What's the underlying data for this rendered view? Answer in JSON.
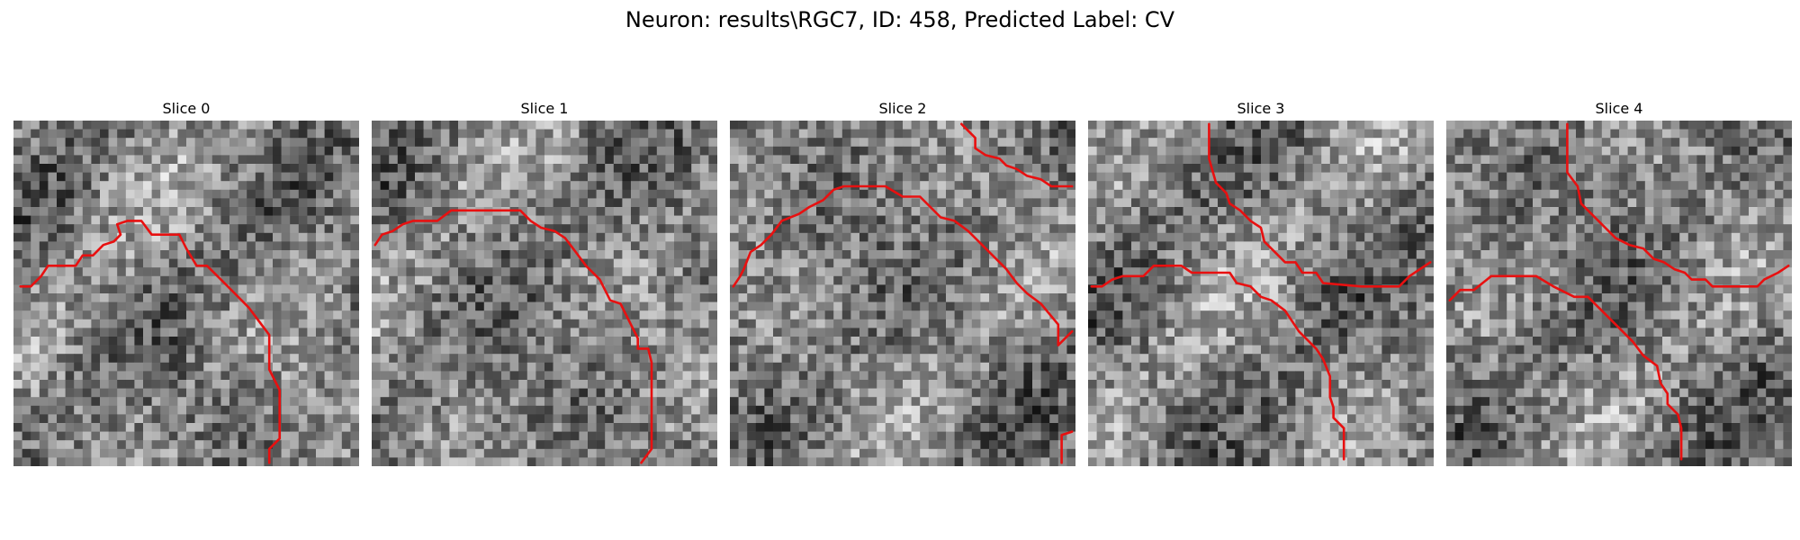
{
  "figure": {
    "title": "Neuron: results\\RGC7, ID: 458, Predicted Label: CV"
  },
  "style": {
    "trace_color": "#e81010",
    "colormap": "gray"
  },
  "slices": [
    {
      "title": "Slice 0",
      "seed": 11,
      "grid": 40,
      "traces": [
        [
          [
            0.02,
            0.48
          ],
          [
            0.05,
            0.48
          ],
          [
            0.08,
            0.45
          ],
          [
            0.1,
            0.42
          ],
          [
            0.13,
            0.42
          ],
          [
            0.18,
            0.42
          ],
          [
            0.2,
            0.39
          ],
          [
            0.23,
            0.39
          ],
          [
            0.26,
            0.36
          ],
          [
            0.29,
            0.35
          ],
          [
            0.31,
            0.33
          ],
          [
            0.3,
            0.3
          ],
          [
            0.33,
            0.29
          ],
          [
            0.37,
            0.29
          ],
          [
            0.4,
            0.33
          ],
          [
            0.48,
            0.33
          ],
          [
            0.5,
            0.37
          ],
          [
            0.53,
            0.42
          ],
          [
            0.56,
            0.42
          ],
          [
            0.6,
            0.46
          ],
          [
            0.64,
            0.5
          ],
          [
            0.68,
            0.54
          ],
          [
            0.71,
            0.58
          ],
          [
            0.74,
            0.62
          ],
          [
            0.74,
            0.72
          ],
          [
            0.77,
            0.78
          ],
          [
            0.77,
            0.92
          ],
          [
            0.74,
            0.95
          ],
          [
            0.74,
            0.99
          ]
        ]
      ]
    },
    {
      "title": "Slice 1",
      "seed": 23,
      "grid": 40,
      "traces": [
        [
          [
            0.01,
            0.36
          ],
          [
            0.03,
            0.33
          ],
          [
            0.06,
            0.32
          ],
          [
            0.09,
            0.3
          ],
          [
            0.12,
            0.29
          ],
          [
            0.19,
            0.29
          ],
          [
            0.23,
            0.26
          ],
          [
            0.43,
            0.26
          ],
          [
            0.46,
            0.29
          ],
          [
            0.49,
            0.31
          ],
          [
            0.53,
            0.32
          ],
          [
            0.56,
            0.34
          ],
          [
            0.59,
            0.38
          ],
          [
            0.62,
            0.42
          ],
          [
            0.66,
            0.46
          ],
          [
            0.69,
            0.52
          ],
          [
            0.72,
            0.53
          ],
          [
            0.75,
            0.59
          ],
          [
            0.77,
            0.63
          ],
          [
            0.77,
            0.66
          ],
          [
            0.8,
            0.66
          ],
          [
            0.81,
            0.7
          ],
          [
            0.81,
            0.95
          ],
          [
            0.78,
            0.99
          ]
        ]
      ]
    },
    {
      "title": "Slice 2",
      "seed": 37,
      "grid": 40,
      "traces": [
        [
          [
            0.01,
            0.48
          ],
          [
            0.03,
            0.45
          ],
          [
            0.04,
            0.43
          ],
          [
            0.06,
            0.38
          ],
          [
            0.09,
            0.36
          ],
          [
            0.12,
            0.33
          ],
          [
            0.15,
            0.29
          ],
          [
            0.2,
            0.27
          ],
          [
            0.23,
            0.25
          ],
          [
            0.27,
            0.23
          ],
          [
            0.3,
            0.2
          ],
          [
            0.33,
            0.19
          ],
          [
            0.36,
            0.19
          ],
          [
            0.45,
            0.19
          ],
          [
            0.5,
            0.22
          ],
          [
            0.55,
            0.22
          ],
          [
            0.58,
            0.25
          ],
          [
            0.61,
            0.28
          ],
          [
            0.65,
            0.29
          ],
          [
            0.69,
            0.32
          ],
          [
            0.73,
            0.36
          ],
          [
            0.77,
            0.4
          ],
          [
            0.8,
            0.43
          ],
          [
            0.83,
            0.47
          ],
          [
            0.86,
            0.5
          ],
          [
            0.9,
            0.53
          ],
          [
            0.95,
            0.59
          ],
          [
            0.95,
            0.65
          ],
          [
            0.99,
            0.61
          ]
        ],
        [
          [
            0.67,
            0.01
          ],
          [
            0.71,
            0.05
          ],
          [
            0.71,
            0.08
          ],
          [
            0.74,
            0.1
          ],
          [
            0.78,
            0.11
          ],
          [
            0.8,
            0.13
          ],
          [
            0.83,
            0.14
          ],
          [
            0.86,
            0.16
          ],
          [
            0.9,
            0.17
          ],
          [
            0.93,
            0.19
          ],
          [
            0.99,
            0.19
          ]
        ],
        [
          [
            0.96,
            0.99
          ],
          [
            0.96,
            0.91
          ],
          [
            0.99,
            0.9
          ]
        ]
      ]
    },
    {
      "title": "Slice 3",
      "seed": 41,
      "grid": 40,
      "traces": [
        [
          [
            0.35,
            0.01
          ],
          [
            0.35,
            0.11
          ],
          [
            0.37,
            0.18
          ],
          [
            0.4,
            0.21
          ],
          [
            0.41,
            0.24
          ],
          [
            0.44,
            0.26
          ],
          [
            0.47,
            0.29
          ],
          [
            0.5,
            0.31
          ],
          [
            0.51,
            0.35
          ],
          [
            0.54,
            0.38
          ],
          [
            0.57,
            0.41
          ],
          [
            0.6,
            0.41
          ],
          [
            0.62,
            0.44
          ],
          [
            0.66,
            0.44
          ],
          [
            0.68,
            0.47
          ],
          [
            0.79,
            0.48
          ],
          [
            0.9,
            0.48
          ],
          [
            0.93,
            0.45
          ],
          [
            0.99,
            0.41
          ]
        ],
        [
          [
            0.01,
            0.48
          ],
          [
            0.04,
            0.48
          ],
          [
            0.07,
            0.46
          ],
          [
            0.1,
            0.45
          ],
          [
            0.16,
            0.45
          ],
          [
            0.19,
            0.42
          ],
          [
            0.27,
            0.42
          ],
          [
            0.3,
            0.44
          ],
          [
            0.41,
            0.44
          ],
          [
            0.43,
            0.47
          ],
          [
            0.47,
            0.48
          ],
          [
            0.5,
            0.51
          ],
          [
            0.53,
            0.52
          ],
          [
            0.57,
            0.55
          ],
          [
            0.61,
            0.61
          ],
          [
            0.66,
            0.66
          ],
          [
            0.68,
            0.69
          ],
          [
            0.7,
            0.74
          ],
          [
            0.7,
            0.8
          ],
          [
            0.71,
            0.83
          ],
          [
            0.71,
            0.86
          ],
          [
            0.74,
            0.89
          ],
          [
            0.74,
            0.98
          ]
        ]
      ]
    },
    {
      "title": "Slice 4",
      "seed": 59,
      "grid": 40,
      "traces": [
        [
          [
            0.35,
            0.01
          ],
          [
            0.35,
            0.15
          ],
          [
            0.38,
            0.19
          ],
          [
            0.39,
            0.24
          ],
          [
            0.43,
            0.28
          ],
          [
            0.46,
            0.31
          ],
          [
            0.49,
            0.34
          ],
          [
            0.53,
            0.36
          ],
          [
            0.57,
            0.37
          ],
          [
            0.6,
            0.4
          ],
          [
            0.63,
            0.41
          ],
          [
            0.66,
            0.43
          ],
          [
            0.69,
            0.44
          ],
          [
            0.71,
            0.46
          ],
          [
            0.75,
            0.46
          ],
          [
            0.77,
            0.48
          ],
          [
            0.83,
            0.48
          ],
          [
            0.9,
            0.48
          ],
          [
            0.92,
            0.46
          ],
          [
            0.96,
            0.44
          ],
          [
            0.99,
            0.42
          ]
        ],
        [
          [
            0.01,
            0.52
          ],
          [
            0.04,
            0.49
          ],
          [
            0.08,
            0.49
          ],
          [
            0.13,
            0.45
          ],
          [
            0.26,
            0.45
          ],
          [
            0.31,
            0.48
          ],
          [
            0.37,
            0.51
          ],
          [
            0.41,
            0.51
          ],
          [
            0.44,
            0.54
          ],
          [
            0.48,
            0.58
          ],
          [
            0.51,
            0.61
          ],
          [
            0.54,
            0.64
          ],
          [
            0.57,
            0.68
          ],
          [
            0.61,
            0.71
          ],
          [
            0.62,
            0.76
          ],
          [
            0.64,
            0.79
          ],
          [
            0.64,
            0.82
          ],
          [
            0.67,
            0.85
          ],
          [
            0.68,
            0.89
          ],
          [
            0.68,
            0.98
          ]
        ]
      ]
    }
  ]
}
